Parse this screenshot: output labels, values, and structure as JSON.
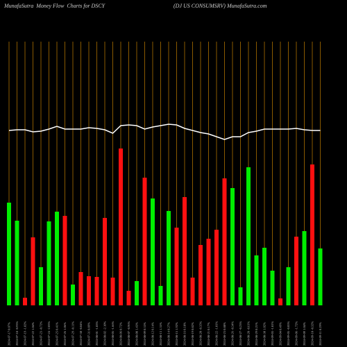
{
  "chart_data": {
    "type": "bar",
    "title": "MunafaSutra  Money Flow  Charts for DSCY",
    "subtitle": "(DJ US CONSUMSRV) MunafaSutra.com",
    "categories": [
      "2024-07-17 0.07%",
      "2024-07-18 -0.93%",
      "2024-07-19 -1.82%",
      "2024-07-22 1.04%",
      "2024-07-23 -0.72%",
      "2024-07-24 -2.03%",
      "2024-07-25 0.41%",
      "2024-07-26 1.06%",
      "2024-07-29 -0.11%",
      "2024-07-30 -0.04%",
      "2024-07-31 0.89%",
      "2024-08-01 -1.83%",
      "2024-08-02 -2.10%",
      "2024-08-05 -1.66%",
      "2024-08-06 0.72%",
      "2024-08-07 -0.96%",
      "2024-08-08 1.43%",
      "2024-08-09 0.33%",
      "2024-08-12 0.14%",
      "2024-08-13 1.35%",
      "2024-08-14 0.27%",
      "2024-08-15 1.92%",
      "2024-08-16 0.18%",
      "2024-08-19 0.82%",
      "2024-08-20 -0.35%",
      "2024-08-21 0.17%",
      "2024-08-22 -1.01%",
      "2024-08-23 0.88%",
      "2024-08-26 -0.34%",
      "2024-08-27 -0.23%",
      "2024-08-28 -0.61%",
      "2024-08-29 0.21%",
      "2024-08-30 1.02%",
      "2024-09-03 -1.81%",
      "2024-09-04 0.49%",
      "2024-09-05 -0.05%",
      "2024-09-06 -1.72%",
      "2024-09-09 1.04%",
      "2024-09-10 -0.32%",
      "2024-09-11 0.29%"
    ],
    "series": [
      {
        "type": "bar",
        "values": [
          148,
          122,
          11,
          98,
          55,
          121,
          135,
          129,
          30,
          48,
          42,
          41,
          126,
          40,
          226,
          21,
          35,
          184,
          154,
          28,
          136,
          112,
          156,
          40,
          87,
          96,
          109,
          183,
          169,
          26,
          199,
          72,
          83,
          50,
          10,
          55,
          99,
          107,
          203,
          82
        ],
        "colors": [
          "#00ee00",
          "#00ee00",
          "#ff1010",
          "#ff1010",
          "#00ee00",
          "#00ee00",
          "#00ee00",
          "#ff1010",
          "#00ee00",
          "#ff1010",
          "#ff1010",
          "#ff1010",
          "#ff1010",
          "#ff1010",
          "#ff1010",
          "#ff1010",
          "#00ee00",
          "#ff1010",
          "#00ee00",
          "#00ee00",
          "#00ee00",
          "#ff1010",
          "#ff1010",
          "#ff1010",
          "#ff1010",
          "#ff1010",
          "#ff1010",
          "#ff1010",
          "#00ee00",
          "#00ee00",
          "#00ee00",
          "#00ee00",
          "#00ee00",
          "#00ee00",
          "#ff1010",
          "#00ee00",
          "#ff1010",
          "#00ee00",
          "#ff1010",
          "#00ee00"
        ]
      },
      {
        "type": "line",
        "color": "#ffffff",
        "values": [
          252,
          253,
          253,
          250,
          251,
          254,
          258,
          254,
          254,
          254,
          256,
          255,
          253,
          248,
          259,
          260,
          259,
          254,
          257,
          259,
          261,
          260,
          255,
          252,
          249,
          247,
          243,
          239,
          243,
          243,
          249,
          251,
          254,
          254,
          254,
          254,
          255,
          253,
          252,
          252
        ]
      }
    ],
    "ylim": [
      0,
      380
    ]
  }
}
